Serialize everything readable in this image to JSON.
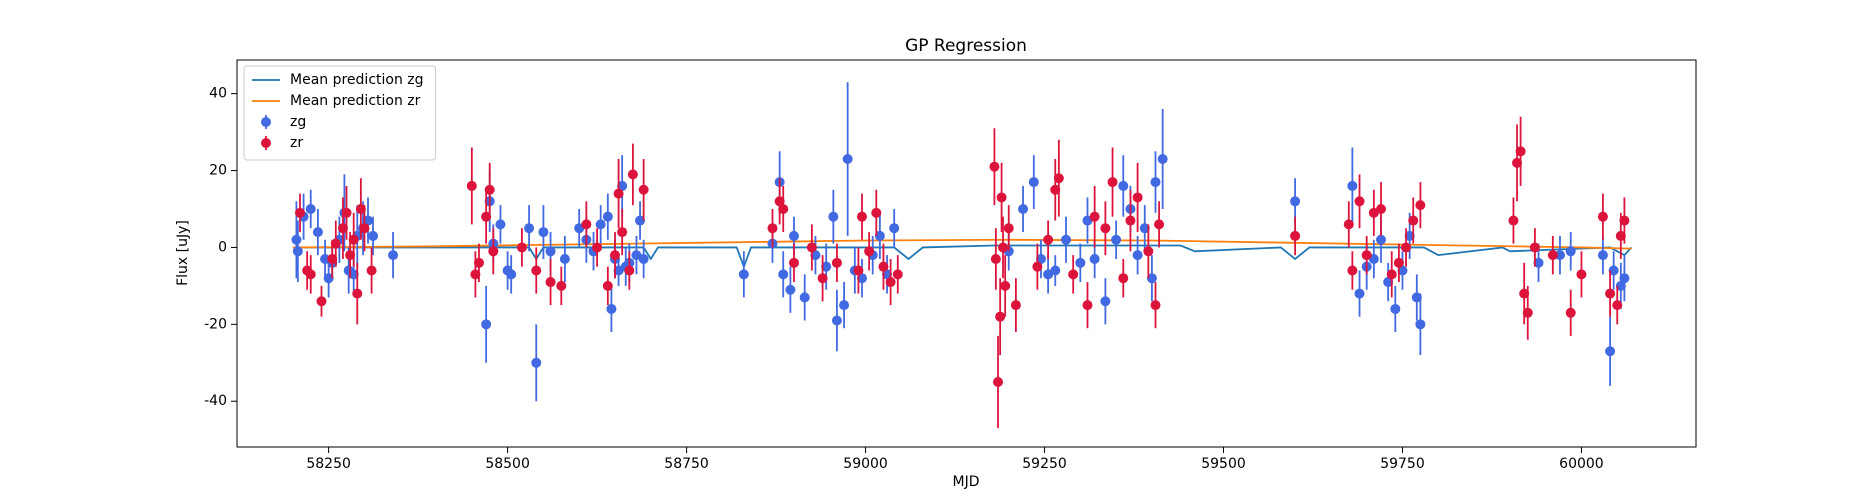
{
  "chart_data": {
    "type": "scatter",
    "title": "GP Regression",
    "x_label": "MJD",
    "y_label": "Flux [uJy]",
    "xlim": [
      58122,
      60160
    ],
    "ylim": [
      -51.9,
      48.75
    ],
    "xticks": [
      58250,
      58500,
      58750,
      59000,
      59250,
      59500,
      59750,
      60000
    ],
    "yticks": [
      -40,
      -20,
      0,
      20,
      40
    ],
    "legend": "upper left",
    "grid": false,
    "series": [
      {
        "name": "Mean prediction zg",
        "kind": "line",
        "color": "#1f77b4",
        "x": [
          58200,
          58350,
          58530,
          58540,
          58550,
          58690,
          58700,
          58710,
          58820,
          58830,
          58840,
          59040,
          59060,
          59080,
          59180,
          59440,
          59460,
          59580,
          59600,
          59620,
          59780,
          59800,
          59890,
          59900,
          60040,
          60060,
          60070
        ],
        "values": [
          0,
          0,
          0,
          -3,
          0,
          0,
          -3,
          0,
          0,
          -5,
          0,
          0,
          -3,
          0,
          0.5,
          0.5,
          -1,
          0,
          -3,
          0,
          0,
          -2,
          0,
          -1,
          0,
          -2,
          0
        ]
      },
      {
        "name": "Mean prediction zr",
        "kind": "line",
        "color": "#ff7f0e",
        "x": [
          58200,
          58400,
          58600,
          58800,
          59000,
          59200,
          59400,
          59600,
          59800,
          60000,
          60070
        ],
        "values": [
          0,
          0.3,
          0.8,
          1.3,
          1.8,
          2,
          1.8,
          1.2,
          0.6,
          0,
          -0.3
        ]
      },
      {
        "name": "zg",
        "kind": "errorbar",
        "color": "#4169e1",
        "x": [
          58205,
          58207,
          58215,
          58225,
          58235,
          58245,
          58250,
          58255,
          58265,
          58272,
          58278,
          58285,
          58290,
          58298,
          58305,
          58312,
          58340,
          58470,
          58475,
          58480,
          58490,
          58500,
          58505,
          58530,
          58540,
          58550,
          58560,
          58580,
          58600,
          58610,
          58620,
          58630,
          58640,
          58645,
          58650,
          58655,
          58660,
          58665,
          58670,
          58680,
          58685,
          58690,
          58830,
          58870,
          58880,
          58885,
          58895,
          58900,
          58915,
          58930,
          58945,
          58955,
          58960,
          58970,
          58975,
          58985,
          58995,
          59010,
          59020,
          59030,
          59040,
          59200,
          59220,
          59235,
          59245,
          59255,
          59265,
          59280,
          59300,
          59310,
          59320,
          59335,
          59350,
          59360,
          59370,
          59380,
          59390,
          59400,
          59405,
          59415,
          59600,
          59680,
          59690,
          59700,
          59710,
          59720,
          59730,
          59740,
          59750,
          59760,
          59770,
          59775,
          59940,
          59970,
          59985,
          60030,
          60040,
          60045,
          60055,
          60060
        ],
        "values": [
          2,
          -1,
          8,
          10,
          4,
          -3,
          -8,
          -4,
          2,
          9,
          -6,
          -7,
          3,
          5,
          7,
          3,
          -2,
          -20,
          12,
          1,
          6,
          -6,
          -7,
          5,
          -30,
          4,
          -1,
          -3,
          5,
          2,
          -1,
          6,
          8,
          -16,
          -3,
          -6,
          16,
          -5,
          -4,
          -2,
          7,
          -3,
          -7,
          1,
          17,
          -7,
          -11,
          3,
          -13,
          -2,
          -5,
          8,
          -19,
          -15,
          23,
          -6,
          -8,
          -2,
          3,
          -7,
          5,
          -1,
          10,
          17,
          -3,
          -7,
          -6,
          2,
          -4,
          7,
          -3,
          -14,
          2,
          16,
          10,
          -2,
          5,
          -8,
          17,
          23,
          12,
          16,
          -12,
          -5,
          -3,
          2,
          -9,
          -16,
          -6,
          3,
          -13,
          -20,
          -4,
          -2,
          -1,
          -2,
          -27,
          -6,
          -10,
          -8
        ],
        "errors": [
          10,
          8,
          6,
          5,
          6,
          5,
          5,
          4,
          6,
          10,
          6,
          5,
          8,
          7,
          6,
          5,
          6,
          10,
          8,
          5,
          5,
          5,
          5,
          6,
          10,
          7,
          5,
          6,
          5,
          6,
          5,
          5,
          6,
          6,
          5,
          4,
          8,
          5,
          5,
          5,
          5,
          5,
          6,
          5,
          8,
          6,
          6,
          5,
          6,
          5,
          6,
          7,
          8,
          6,
          20,
          6,
          5,
          5,
          6,
          5,
          5,
          5,
          6,
          7,
          5,
          5,
          4,
          6,
          5,
          6,
          5,
          6,
          5,
          8,
          6,
          5,
          6,
          6,
          8,
          13,
          6,
          10,
          6,
          6,
          5,
          6,
          5,
          6,
          5,
          6,
          6,
          8,
          5,
          5,
          5,
          5,
          9,
          5,
          6,
          6
        ]
      },
      {
        "name": "zr",
        "kind": "errorbar",
        "color": "#dc143c",
        "x": [
          58210,
          58220,
          58225,
          58240,
          58255,
          58260,
          58270,
          58275,
          58280,
          58285,
          58290,
          58295,
          58300,
          58310,
          58450,
          58455,
          58460,
          58470,
          58475,
          58480,
          58520,
          58540,
          58560,
          58575,
          58610,
          58625,
          58640,
          58650,
          58655,
          58660,
          58670,
          58675,
          58690,
          58870,
          58880,
          58885,
          58900,
          58925,
          58940,
          58960,
          58990,
          58995,
          59005,
          59015,
          59025,
          59035,
          59045,
          59180,
          59182,
          59185,
          59188,
          59190,
          59192,
          59195,
          59200,
          59210,
          59240,
          59255,
          59265,
          59270,
          59290,
          59310,
          59320,
          59335,
          59345,
          59360,
          59370,
          59380,
          59395,
          59405,
          59410,
          59600,
          59675,
          59680,
          59690,
          59700,
          59710,
          59720,
          59735,
          59745,
          59755,
          59765,
          59775,
          59905,
          59910,
          59915,
          59920,
          59925,
          59935,
          59960,
          59985,
          60000,
          60030,
          60040,
          60050,
          60055,
          60060
        ],
        "values": [
          9,
          -6,
          -7,
          -14,
          -3,
          1,
          5,
          9,
          -2,
          2,
          -12,
          10,
          5,
          -6,
          16,
          -7,
          -4,
          8,
          15,
          -1,
          0,
          -6,
          -9,
          -10,
          6,
          0,
          -10,
          -2,
          14,
          4,
          -6,
          19,
          15,
          5,
          12,
          10,
          -4,
          0,
          -8,
          -4,
          -6,
          8,
          -1,
          9,
          -5,
          -9,
          -7,
          21,
          -3,
          -35,
          -18,
          13,
          0,
          -10,
          5,
          -15,
          -5,
          2,
          15,
          18,
          -7,
          -15,
          8,
          5,
          17,
          -8,
          7,
          13,
          -1,
          -15,
          6,
          3,
          6,
          -6,
          12,
          -2,
          9,
          10,
          -7,
          -4,
          0,
          7,
          11,
          7,
          22,
          25,
          -12,
          -17,
          0,
          -2,
          -17,
          -7,
          8,
          -12,
          -15,
          3,
          7
        ],
        "errors": [
          5,
          5,
          5,
          4,
          5,
          6,
          8,
          7,
          6,
          7,
          8,
          8,
          6,
          6,
          10,
          6,
          5,
          7,
          7,
          6,
          5,
          6,
          6,
          5,
          6,
          5,
          5,
          6,
          9,
          6,
          5,
          8,
          8,
          5,
          6,
          6,
          5,
          6,
          6,
          5,
          6,
          6,
          5,
          6,
          6,
          6,
          5,
          10,
          8,
          12,
          10,
          9,
          8,
          8,
          6,
          7,
          6,
          5,
          8,
          10,
          5,
          6,
          8,
          7,
          9,
          5,
          8,
          9,
          7,
          6,
          6,
          5,
          6,
          5,
          7,
          5,
          6,
          7,
          6,
          5,
          5,
          6,
          6,
          6,
          10,
          9,
          8,
          7,
          5,
          5,
          6,
          6,
          6,
          6,
          5,
          6,
          6
        ]
      }
    ]
  }
}
